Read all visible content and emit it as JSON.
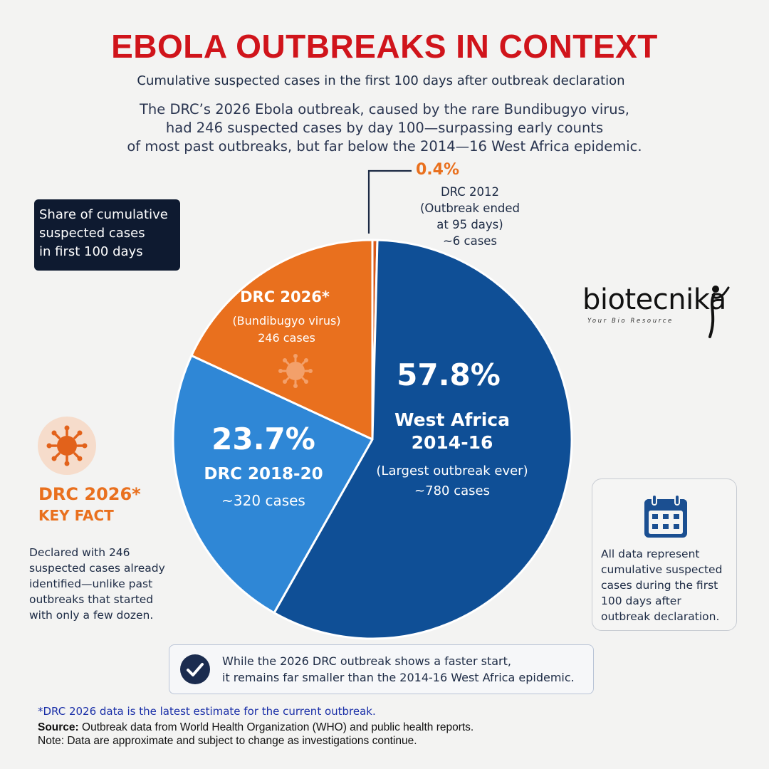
{
  "header": {
    "title": "EBOLA OUTBREAKS IN CONTEXT",
    "subtitle": "Cumulative suspected cases in the first 100 days after outbreak declaration",
    "intro_line1": "The DRC’s 2026 Ebola outbreak, caused by the rare Bundibugyo virus,",
    "intro_line2": "had 246 suspected cases by day 100—surpassing early counts",
    "intro_line3": "of most past outbreaks, but far below the 2014—16 West Africa epidemic."
  },
  "share_box": {
    "line1": "Share of cumulative",
    "line2": "suspected cases",
    "line3": "in first 100 days"
  },
  "chart_data": {
    "type": "pie",
    "slices": [
      {
        "name": "DRC 2012",
        "percent": 0.4,
        "color": "#d95a1b"
      },
      {
        "name": "West Africa 2014-16",
        "percent": 57.8,
        "color": "#0f4f96"
      },
      {
        "name": "DRC 2018-20",
        "percent": 23.7,
        "color": "#2f87d6"
      },
      {
        "name": "DRC 2026*",
        "percent": 18.1,
        "color": "#e9701e"
      }
    ]
  },
  "labels": {
    "west_africa": {
      "pct": "57.8%",
      "name_line1": "West Africa",
      "name_line2": "2014-16",
      "note": "(Largest outbreak ever)",
      "cases": "~780 cases"
    },
    "drc_2018": {
      "pct": "23.7%",
      "name": "DRC 2018-20",
      "cases": "~320 cases"
    },
    "drc_2026": {
      "name": "DRC 2026*",
      "virus": "(Bundibugyo virus)",
      "cases": "246 cases"
    },
    "drc_2012": {
      "pct": "0.4%",
      "line1": "DRC 2012",
      "line2": "(Outbreak ended",
      "line3": "at 95 days)",
      "line4": "~6 cases"
    }
  },
  "logo": {
    "name": "biotecnika",
    "tagline": "Your Bio Resource"
  },
  "key_fact": {
    "title": "DRC 2026*",
    "subtitle": "KEY FACT",
    "line1": "Declared with 246",
    "line2": "suspected cases already",
    "line3": "identified—unlike past",
    "line4": "outbreaks that started",
    "line5": "with only a few dozen."
  },
  "data_box": {
    "icon": "calendar-icon",
    "line1": "All data represent",
    "line2": "cumulative suspected",
    "line3": "cases during the first",
    "line4": "100 days after",
    "line5": "outbreak declaration."
  },
  "note_box": {
    "icon": "check-icon",
    "line1": "While the 2026 DRC outbreak shows a faster start,",
    "line2": "it remains far smaller than the 2014-16 West Africa epidemic."
  },
  "footer": {
    "footnote": "*DRC 2026 data is the latest estimate for the current outbreak.",
    "source_label": "Source:",
    "source_text": " Outbreak data from World Health Organization (WHO) and public health reports.",
    "note": "Note: Data are approximate and subject to change as investigations continue."
  },
  "colors": {
    "title_red": "#d0141b",
    "accent_orange": "#e9701e",
    "navy": "#0e1a30",
    "dark_blue": "#0f4f96",
    "light_blue": "#2f87d6"
  }
}
